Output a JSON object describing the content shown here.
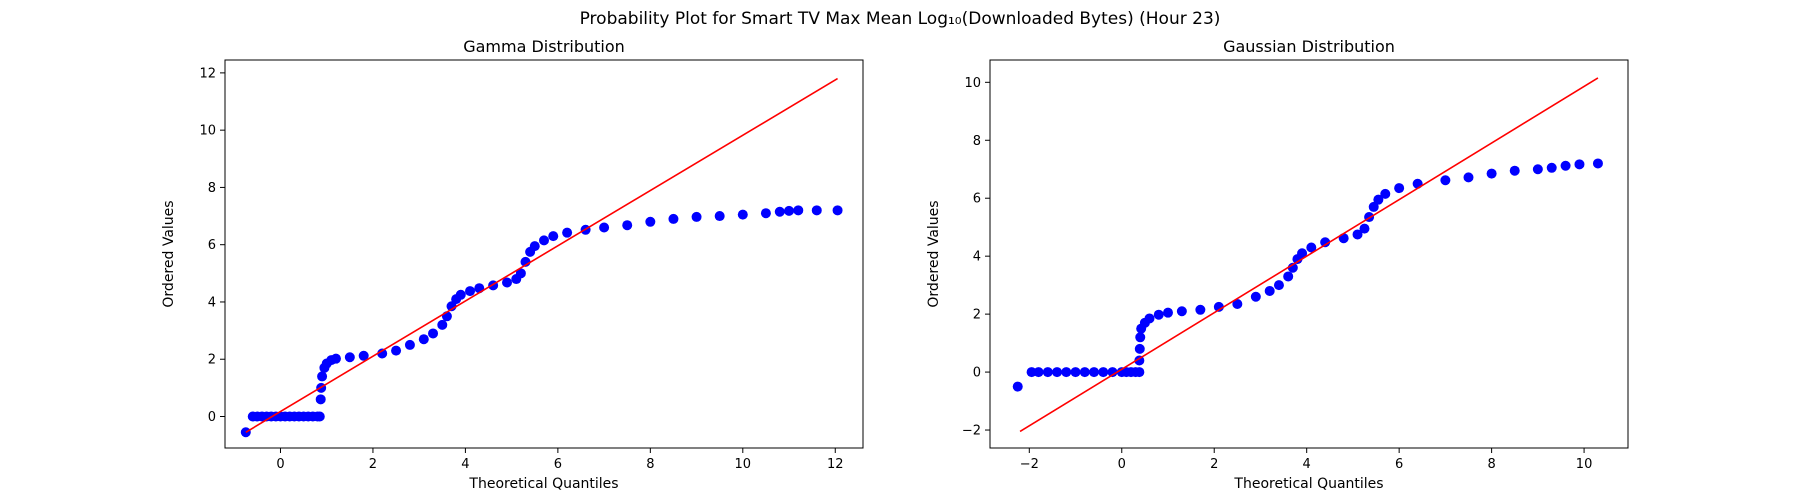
{
  "figure": {
    "title": "Probability Plot for Smart TV Max Mean Log₁₀(Downloaded Bytes) (Hour 23)"
  },
  "colors": {
    "points": "#0000ff",
    "fit_line": "#ff0000",
    "axes": "#000000"
  },
  "chart_data": [
    {
      "type": "scatter",
      "title": "Gamma Distribution",
      "xlabel": "Theoretical Quantiles",
      "ylabel": "Ordered Values",
      "xlim": [
        -1.2,
        12.6
      ],
      "ylim": [
        -1.1,
        12.45
      ],
      "xticks": [
        0,
        2,
        4,
        6,
        8,
        10,
        12
      ],
      "yticks": [
        0,
        2,
        4,
        6,
        8,
        10,
        12
      ],
      "grid": false,
      "fit_line": {
        "x": [
          -0.75,
          12.05
        ],
        "y": [
          -0.55,
          11.8
        ]
      },
      "points": [
        [
          -0.75,
          -0.55
        ],
        [
          -0.6,
          0.0
        ],
        [
          -0.5,
          0.0
        ],
        [
          -0.4,
          0.0
        ],
        [
          -0.3,
          0.0
        ],
        [
          -0.2,
          0.0
        ],
        [
          -0.1,
          0.0
        ],
        [
          0.0,
          0.0
        ],
        [
          0.1,
          0.0
        ],
        [
          0.2,
          0.0
        ],
        [
          0.3,
          0.0
        ],
        [
          0.4,
          0.0
        ],
        [
          0.5,
          0.0
        ],
        [
          0.6,
          0.0
        ],
        [
          0.7,
          0.0
        ],
        [
          0.8,
          0.0
        ],
        [
          0.85,
          0.0
        ],
        [
          0.87,
          0.6
        ],
        [
          0.88,
          1.0
        ],
        [
          0.9,
          1.4
        ],
        [
          0.95,
          1.7
        ],
        [
          1.0,
          1.85
        ],
        [
          1.1,
          1.97
        ],
        [
          1.2,
          2.02
        ],
        [
          1.5,
          2.07
        ],
        [
          1.8,
          2.12
        ],
        [
          2.2,
          2.2
        ],
        [
          2.5,
          2.3
        ],
        [
          2.8,
          2.5
        ],
        [
          3.1,
          2.7
        ],
        [
          3.3,
          2.9
        ],
        [
          3.5,
          3.2
        ],
        [
          3.6,
          3.5
        ],
        [
          3.7,
          3.85
        ],
        [
          3.8,
          4.1
        ],
        [
          3.9,
          4.25
        ],
        [
          4.1,
          4.38
        ],
        [
          4.3,
          4.48
        ],
        [
          4.6,
          4.58
        ],
        [
          4.9,
          4.68
        ],
        [
          5.1,
          4.8
        ],
        [
          5.2,
          5.0
        ],
        [
          5.3,
          5.4
        ],
        [
          5.4,
          5.75
        ],
        [
          5.5,
          5.95
        ],
        [
          5.7,
          6.15
        ],
        [
          5.9,
          6.3
        ],
        [
          6.2,
          6.42
        ],
        [
          6.6,
          6.52
        ],
        [
          7.0,
          6.6
        ],
        [
          7.5,
          6.68
        ],
        [
          8.0,
          6.8
        ],
        [
          8.5,
          6.9
        ],
        [
          9.0,
          6.97
        ],
        [
          9.5,
          7.0
        ],
        [
          10.0,
          7.05
        ],
        [
          10.5,
          7.1
        ],
        [
          10.8,
          7.15
        ],
        [
          11.0,
          7.18
        ],
        [
          11.2,
          7.2
        ],
        [
          11.6,
          7.2
        ],
        [
          12.05,
          7.2
        ]
      ]
    },
    {
      "type": "scatter",
      "title": "Gaussian Distribution",
      "xlabel": "Theoretical Quantiles",
      "ylabel": "Ordered Values",
      "xlim": [
        -2.85,
        10.95
      ],
      "ylim": [
        -2.62,
        10.77
      ],
      "xticks": [
        -2,
        0,
        2,
        4,
        6,
        8,
        10
      ],
      "yticks": [
        -2,
        0,
        2,
        4,
        6,
        8,
        10
      ],
      "grid": false,
      "fit_line": {
        "x": [
          -2.2,
          10.3
        ],
        "y": [
          -2.05,
          10.15
        ]
      },
      "points": [
        [
          -2.25,
          -0.5
        ],
        [
          -1.95,
          0.0
        ],
        [
          -1.8,
          0.0
        ],
        [
          -1.6,
          0.0
        ],
        [
          -1.4,
          0.0
        ],
        [
          -1.2,
          0.0
        ],
        [
          -1.0,
          0.0
        ],
        [
          -0.8,
          0.0
        ],
        [
          -0.6,
          0.0
        ],
        [
          -0.4,
          0.0
        ],
        [
          -0.2,
          0.0
        ],
        [
          0.0,
          0.0
        ],
        [
          0.1,
          0.0
        ],
        [
          0.2,
          0.0
        ],
        [
          0.3,
          0.0
        ],
        [
          0.38,
          0.0
        ],
        [
          0.38,
          0.4
        ],
        [
          0.39,
          0.8
        ],
        [
          0.4,
          1.2
        ],
        [
          0.42,
          1.5
        ],
        [
          0.5,
          1.7
        ],
        [
          0.6,
          1.85
        ],
        [
          0.8,
          1.98
        ],
        [
          1.0,
          2.05
        ],
        [
          1.3,
          2.1
        ],
        [
          1.7,
          2.15
        ],
        [
          2.1,
          2.25
        ],
        [
          2.5,
          2.35
        ],
        [
          2.9,
          2.6
        ],
        [
          3.2,
          2.8
        ],
        [
          3.4,
          3.0
        ],
        [
          3.6,
          3.3
        ],
        [
          3.7,
          3.6
        ],
        [
          3.8,
          3.9
        ],
        [
          3.9,
          4.1
        ],
        [
          4.1,
          4.3
        ],
        [
          4.4,
          4.48
        ],
        [
          4.8,
          4.62
        ],
        [
          5.1,
          4.75
        ],
        [
          5.25,
          4.95
        ],
        [
          5.35,
          5.35
        ],
        [
          5.45,
          5.7
        ],
        [
          5.55,
          5.95
        ],
        [
          5.7,
          6.15
        ],
        [
          6.0,
          6.35
        ],
        [
          6.4,
          6.5
        ],
        [
          7.0,
          6.62
        ],
        [
          7.5,
          6.72
        ],
        [
          8.0,
          6.85
        ],
        [
          8.5,
          6.95
        ],
        [
          9.0,
          7.0
        ],
        [
          9.3,
          7.05
        ],
        [
          9.6,
          7.12
        ],
        [
          9.9,
          7.17
        ],
        [
          10.3,
          7.2
        ]
      ]
    }
  ]
}
